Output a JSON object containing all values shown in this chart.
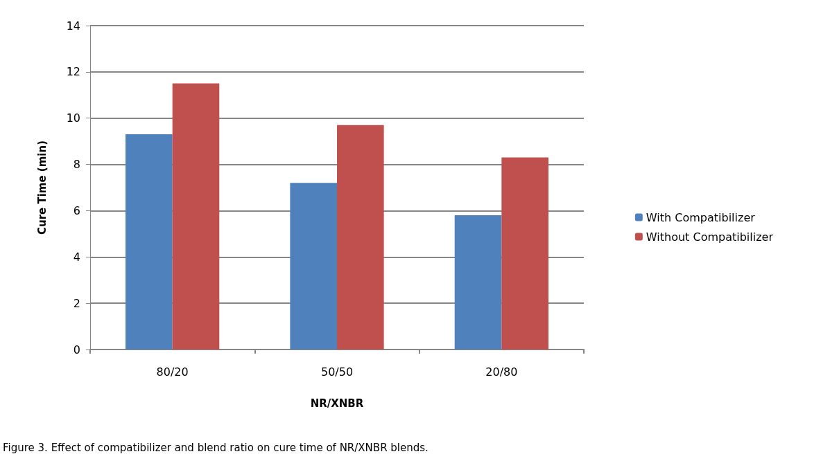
{
  "chart_data": {
    "type": "bar",
    "xlabel": "NR/XNBR",
    "ylabel": "Cure Time (min)",
    "categories": [
      "80/20",
      "50/50",
      "20/80"
    ],
    "series": [
      {
        "name": "With Compatibilizer",
        "color": "#4f81bd",
        "values": [
          9.3,
          7.2,
          5.8
        ]
      },
      {
        "name": "Without Compatibilizer",
        "color": "#c0504d",
        "values": [
          11.5,
          9.7,
          8.3
        ]
      }
    ],
    "ylim": [
      0,
      14
    ],
    "yticks": [
      0,
      2,
      4,
      6,
      8,
      10,
      12,
      14
    ],
    "grid": "y",
    "legend": "right",
    "annotations": [
      "Figure 3. Effect of compatibilizer and blend ratio on cure time of NR/XNBR blends."
    ]
  }
}
